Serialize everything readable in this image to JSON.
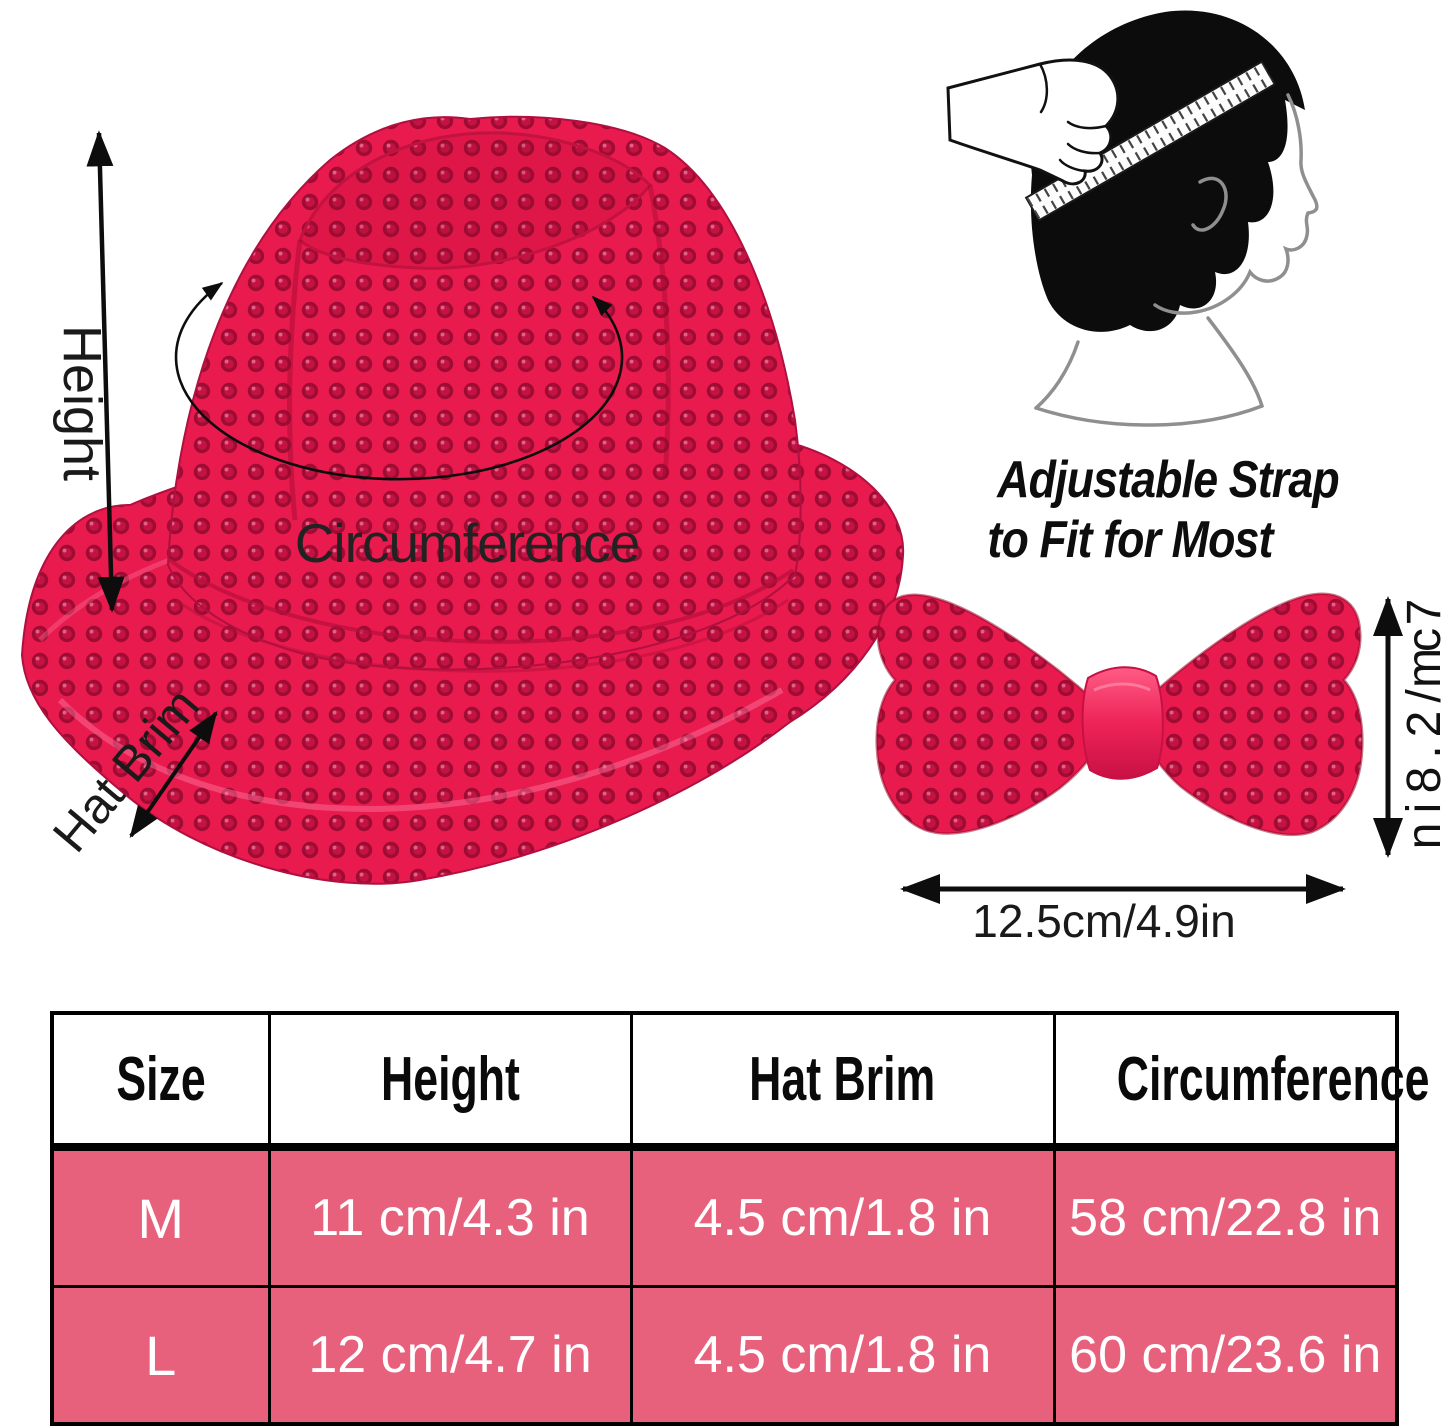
{
  "colors": {
    "sequin_base": "#e91a4d",
    "sequin_dot_ring": "#9e0c33",
    "sequin_highlight": "#ff9cbb",
    "bow_knot": "#ee2457",
    "table_row_pink": "#e7617c",
    "table_border": "#000000",
    "annotation_black": "#111111",
    "profile_gray": "#8f8f8f"
  },
  "hat_annotations": {
    "height_label": "Height",
    "circumference_label": "Circumference",
    "brim_label": "Hat Brim"
  },
  "strap_note": {
    "line1": "Adjustable Strap",
    "line2": "to Fit for Most"
  },
  "bow_tie_labels": {
    "height": "7cm/2.8in",
    "width": "12.5cm/4.9in"
  },
  "size_table": {
    "headers": [
      "Size",
      "Height",
      "Hat Brim",
      "Circumference"
    ],
    "rows": [
      [
        "M",
        "11 cm/4.3 in",
        "4.5 cm/1.8 in",
        "58 cm/22.8 in"
      ],
      [
        "L",
        "12 cm/4.7 in",
        "4.5 cm/1.8 in",
        "60 cm/23.6 in"
      ]
    ]
  }
}
